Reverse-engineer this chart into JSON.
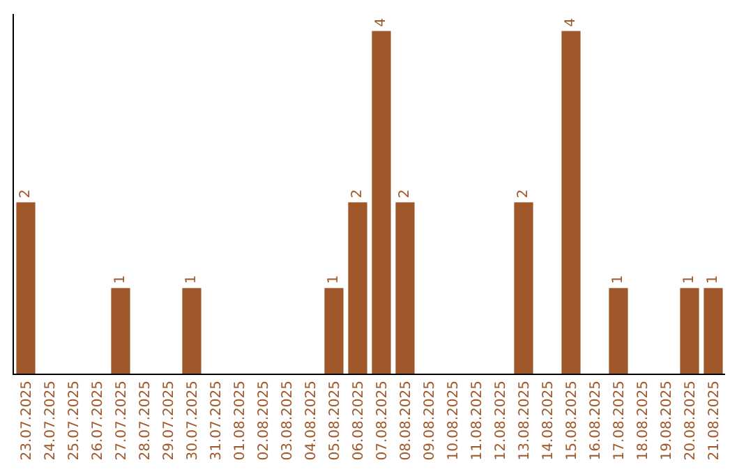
{
  "chart_data": {
    "type": "bar",
    "categories": [
      "23.07.2025",
      "24.07.2025",
      "25.07.2025",
      "26.07.2025",
      "27.07.2025",
      "28.07.2025",
      "29.07.2025",
      "30.07.2025",
      "31.07.2025",
      "01.08.2025",
      "02.08.2025",
      "03.08.2025",
      "04.08.2025",
      "05.08.2025",
      "06.08.2025",
      "07.08.2025",
      "08.08.2025",
      "09.08.2025",
      "10.08.2025",
      "11.08.2025",
      "12.08.2025",
      "13.08.2025",
      "14.08.2025",
      "15.08.2025",
      "16.08.2025",
      "17.08.2025",
      "18.08.2025",
      "19.08.2025",
      "20.08.2025",
      "21.08.2025"
    ],
    "values": [
      2,
      0,
      0,
      0,
      1,
      0,
      0,
      1,
      0,
      0,
      0,
      0,
      0,
      1,
      2,
      4,
      2,
      0,
      0,
      0,
      0,
      2,
      0,
      4,
      0,
      1,
      0,
      0,
      1,
      1
    ],
    "value_labels": [
      "2",
      null,
      null,
      null,
      "1",
      null,
      null,
      "1",
      null,
      null,
      null,
      null,
      null,
      "1",
      "2",
      "4",
      "2",
      null,
      null,
      null,
      null,
      "2",
      null,
      "4",
      null,
      "1",
      null,
      null,
      "1",
      "1"
    ],
    "color": "#a0572a",
    "ylim": [
      0,
      4.2
    ],
    "tick_labels": "x",
    "grid": false
  }
}
